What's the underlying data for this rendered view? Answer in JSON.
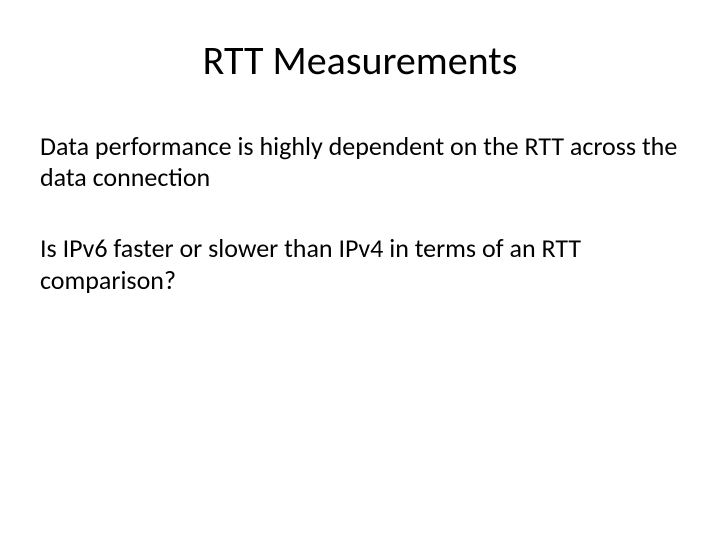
{
  "slide": {
    "title": "RTT Measurements",
    "paragraph1": "Data performance is highly dependent on the RTT across the data connection",
    "paragraph2": "Is IPv6 faster or slower than IPv4 in terms of an RTT comparison?",
    "style": {
      "background_color": "#ffffff",
      "text_color": "#000000",
      "title_fontsize": 40,
      "body_fontsize": 26,
      "font_family": "Calibri"
    }
  }
}
